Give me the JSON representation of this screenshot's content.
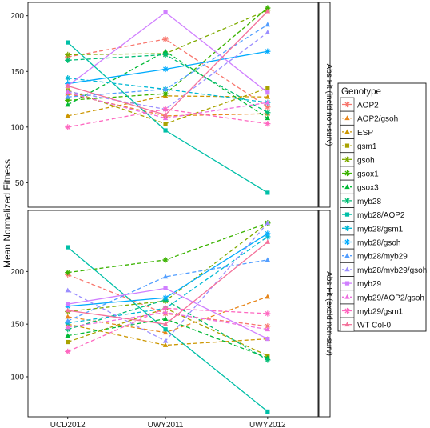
{
  "chart_data": {
    "type": "line",
    "x_categories": [
      "UCD2012",
      "UWY2011",
      "UWY2012"
    ],
    "ylabel": "Mean Normalized Fitness",
    "legend_title": "Genotype",
    "legend_position": "right",
    "grid": false,
    "genotypes": [
      {
        "name": "AOP2",
        "color": "#F8766D",
        "dash": "5,3",
        "marker": "star"
      },
      {
        "name": "AOP2/gsoh",
        "color": "#E7861B",
        "dash": "5,3",
        "marker": "tri"
      },
      {
        "name": "ESP",
        "color": "#CC9600",
        "dash": "5,3",
        "marker": "tri"
      },
      {
        "name": "gsm1",
        "color": "#A9A200",
        "dash": "5,3",
        "marker": "square"
      },
      {
        "name": "gsoh",
        "color": "#7EAB00",
        "dash": "5,3",
        "marker": "star"
      },
      {
        "name": "gsox1",
        "color": "#3BB300",
        "dash": "5,3",
        "marker": "star"
      },
      {
        "name": "gsox3",
        "color": "#00B935",
        "dash": "5,3",
        "marker": "tri"
      },
      {
        "name": "myb28",
        "color": "#00BC74",
        "dash": "5,3",
        "marker": "star"
      },
      {
        "name": "myb28/AOP2",
        "color": "#00BFA7",
        "dash": "",
        "marker": "square"
      },
      {
        "name": "myb28/gsm1",
        "color": "#00B8D4",
        "dash": "5,3",
        "marker": "star"
      },
      {
        "name": "myb28/gsoh",
        "color": "#00ABFD",
        "dash": "",
        "marker": "star"
      },
      {
        "name": "myb28/myb29",
        "color": "#529EFF",
        "dash": "5,3",
        "marker": "tri"
      },
      {
        "name": "myb28/myb29/gsoh",
        "color": "#9B8EFF",
        "dash": "5,3",
        "marker": "tri"
      },
      {
        "name": "myb29",
        "color": "#D07FFF",
        "dash": "",
        "marker": "square"
      },
      {
        "name": "myb29/AOP2/gsoh",
        "color": "#EE6DE0",
        "dash": "5,3",
        "marker": "tri"
      },
      {
        "name": "myb29/gsm1",
        "color": "#FE67C0",
        "dash": "5,3",
        "marker": "star"
      },
      {
        "name": "WT Col-0",
        "color": "#F4719A",
        "dash": "",
        "marker": "tri"
      }
    ],
    "panels": [
      {
        "strip_label": "Abs Fit (incld non-surv)",
        "ylim": [
          28,
          212
        ],
        "yticks": [
          50,
          100,
          150,
          200
        ],
        "series": [
          [
            163,
            179,
            118
          ],
          [
            130,
            110,
            112
          ],
          [
            110,
            128,
            127
          ],
          [
            133,
            103,
            135
          ],
          [
            165,
            166,
            205
          ],
          [
            124,
            130,
            207
          ],
          [
            120,
            168,
            108
          ],
          [
            160,
            165,
            113
          ],
          [
            176,
            97,
            41
          ],
          [
            144,
            134,
            122
          ],
          [
            139,
            152,
            168
          ],
          [
            127,
            134,
            192
          ],
          [
            132,
            116,
            185
          ],
          [
            137,
            203,
            131
          ],
          [
            131,
            108,
            122
          ],
          [
            100,
            116,
            103
          ],
          [
            137,
            111,
            204
          ]
        ]
      },
      {
        "strip_label": "Abs Fit (excld non-surv)",
        "ylim": [
          62,
          258
        ],
        "yticks": [
          100,
          150,
          200
        ],
        "series": [
          [
            197,
            160,
            148
          ],
          [
            157,
            142,
            176
          ],
          [
            150,
            130,
            136
          ],
          [
            133,
            165,
            120
          ],
          [
            162,
            172,
            246
          ],
          [
            199,
            211,
            246
          ],
          [
            139,
            155,
            118
          ],
          [
            145,
            173,
            116
          ],
          [
            223,
            145,
            67
          ],
          [
            151,
            165,
            233
          ],
          [
            167,
            175,
            236
          ],
          [
            153,
            195,
            211
          ],
          [
            182,
            134,
            246
          ],
          [
            169,
            184,
            136
          ],
          [
            147,
            161,
            145
          ],
          [
            124,
            165,
            160
          ],
          [
            163,
            150,
            228
          ]
        ]
      }
    ]
  }
}
